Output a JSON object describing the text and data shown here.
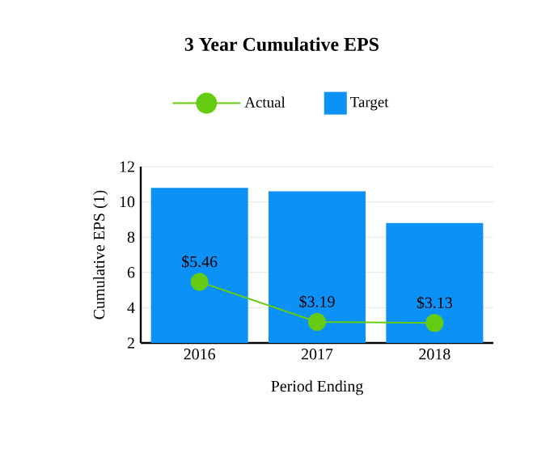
{
  "chart_data": {
    "type": "bar",
    "title": "3 Year Cumulative EPS",
    "xlabel": "Period Ending",
    "ylabel": "Cumulative EPS (1)",
    "categories": [
      "2016",
      "2017",
      "2018"
    ],
    "series": [
      {
        "name": "Actual",
        "type": "line",
        "color": "#66cc11",
        "values": [
          5.46,
          3.19,
          3.13
        ],
        "value_labels": [
          "$5.46",
          "$3.19",
          "$3.13"
        ],
        "marker": "circle"
      },
      {
        "name": "Target",
        "color": "#0c92f6",
        "values": [
          10.8,
          10.6,
          8.8
        ]
      }
    ],
    "ylim": [
      2,
      12
    ],
    "yticks": [
      2,
      4,
      6,
      8,
      10,
      12
    ],
    "grid": "y",
    "legend": "top"
  }
}
